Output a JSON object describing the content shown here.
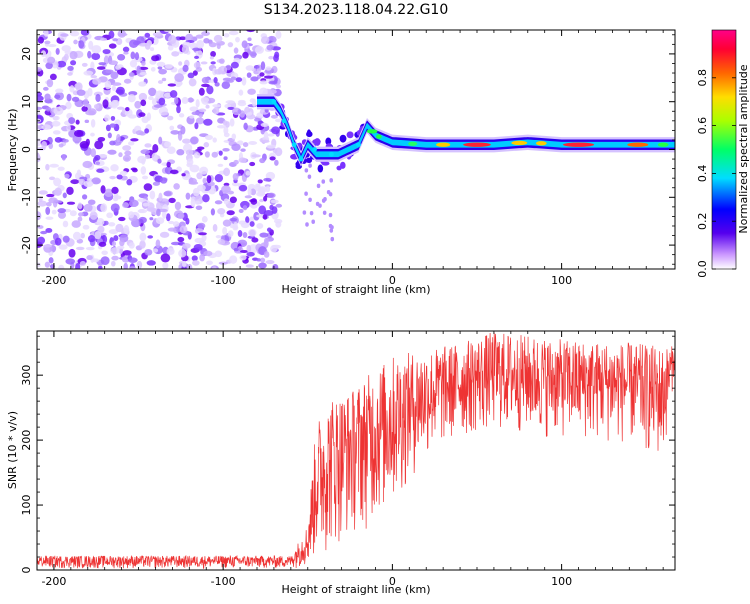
{
  "figure_title": "S134.2023.118.04.22.G10",
  "chart_data": [
    {
      "type": "heatmap",
      "title": "S134.2023.118.04.22.G10",
      "xlabel": "Height of straight line (km)",
      "ylabel": "Frequency (Hz)",
      "xlim": [
        -210,
        167
      ],
      "ylim": [
        -25,
        25
      ],
      "x_ticks": [
        -200,
        -100,
        0,
        100
      ],
      "y_ticks": [
        -20,
        -10,
        0,
        10,
        20
      ],
      "noise_region_x": [
        -210,
        -67
      ],
      "ridge": [
        {
          "x": -80,
          "y": 10
        },
        {
          "x": -70,
          "y": 10
        },
        {
          "x": -66,
          "y": 8
        },
        {
          "x": -62,
          "y": 5
        },
        {
          "x": -58,
          "y": 1
        },
        {
          "x": -54,
          "y": -2
        },
        {
          "x": -50,
          "y": 1
        },
        {
          "x": -45,
          "y": -1
        },
        {
          "x": -38,
          "y": -1
        },
        {
          "x": -32,
          "y": -1
        },
        {
          "x": -26,
          "y": 0
        },
        {
          "x": -20,
          "y": 1
        },
        {
          "x": -15,
          "y": 5
        },
        {
          "x": -10,
          "y": 3
        },
        {
          "x": 0,
          "y": 1.5
        },
        {
          "x": 20,
          "y": 1
        },
        {
          "x": 60,
          "y": 1
        },
        {
          "x": 80,
          "y": 1.5
        },
        {
          "x": 100,
          "y": 1
        },
        {
          "x": 140,
          "y": 1
        },
        {
          "x": 167,
          "y": 1
        }
      ],
      "colorbar": {
        "label": "Normalized spectral amplitude",
        "range": [
          0,
          1
        ],
        "ticks": [
          0.0,
          0.2,
          0.4,
          0.6,
          0.8
        ]
      }
    },
    {
      "type": "line",
      "xlabel": "Height of straight line (km)",
      "ylabel": "SNR (10 * v/v)",
      "xlim": [
        -210,
        167
      ],
      "ylim": [
        0,
        368
      ],
      "x_ticks": [
        -200,
        -100,
        0,
        100
      ],
      "y_ticks": [
        0,
        100,
        200,
        300
      ],
      "color": "#ee3333",
      "envelope": [
        {
          "x": -210,
          "low": 2,
          "high": 22
        },
        {
          "x": -60,
          "low": 2,
          "high": 22
        },
        {
          "x": -50,
          "low": 5,
          "high": 70
        },
        {
          "x": -45,
          "low": 10,
          "high": 230
        },
        {
          "x": -35,
          "low": 30,
          "high": 270
        },
        {
          "x": -25,
          "low": 50,
          "high": 275
        },
        {
          "x": -15,
          "low": 60,
          "high": 300
        },
        {
          "x": 0,
          "low": 90,
          "high": 330
        },
        {
          "x": 20,
          "low": 170,
          "high": 340
        },
        {
          "x": 40,
          "low": 200,
          "high": 350
        },
        {
          "x": 60,
          "low": 210,
          "high": 368
        },
        {
          "x": 100,
          "low": 200,
          "high": 355
        },
        {
          "x": 140,
          "low": 190,
          "high": 350
        },
        {
          "x": 160,
          "low": 160,
          "high": 345
        },
        {
          "x": 167,
          "low": 310,
          "high": 345
        }
      ]
    }
  ]
}
